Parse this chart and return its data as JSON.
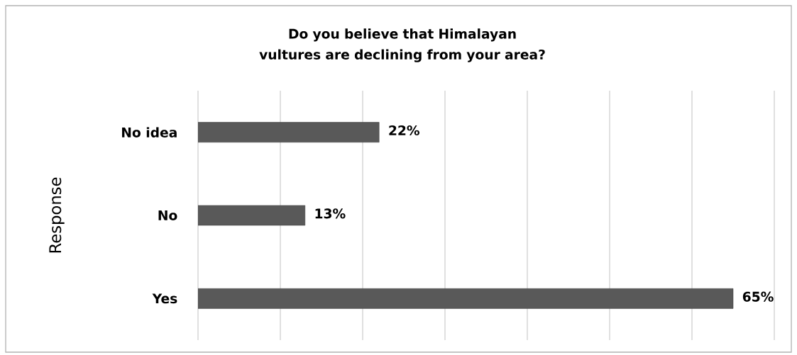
{
  "chart_data": {
    "type": "bar",
    "orientation": "horizontal",
    "title": "Do you believe that Himalayan vultures are declining from your area?",
    "ylabel": "Response",
    "categories": [
      "No idea",
      "No",
      "Yes"
    ],
    "values": [
      22,
      13,
      65
    ],
    "value_labels": [
      "22%",
      "13%",
      "65%"
    ],
    "color": "#595959",
    "xlim": [
      0,
      70
    ],
    "xticks": [
      {
        "value": 0,
        "label": null
      },
      {
        "value": 10,
        "label": null
      },
      {
        "value": 20,
        "label": null
      },
      {
        "value": 30,
        "label": null
      },
      {
        "value": 40,
        "label": null
      },
      {
        "value": 50,
        "label": null
      },
      {
        "value": 60,
        "label": null
      },
      {
        "value": 70,
        "label": null
      }
    ],
    "grid": "x",
    "tick_labels": "y"
  }
}
